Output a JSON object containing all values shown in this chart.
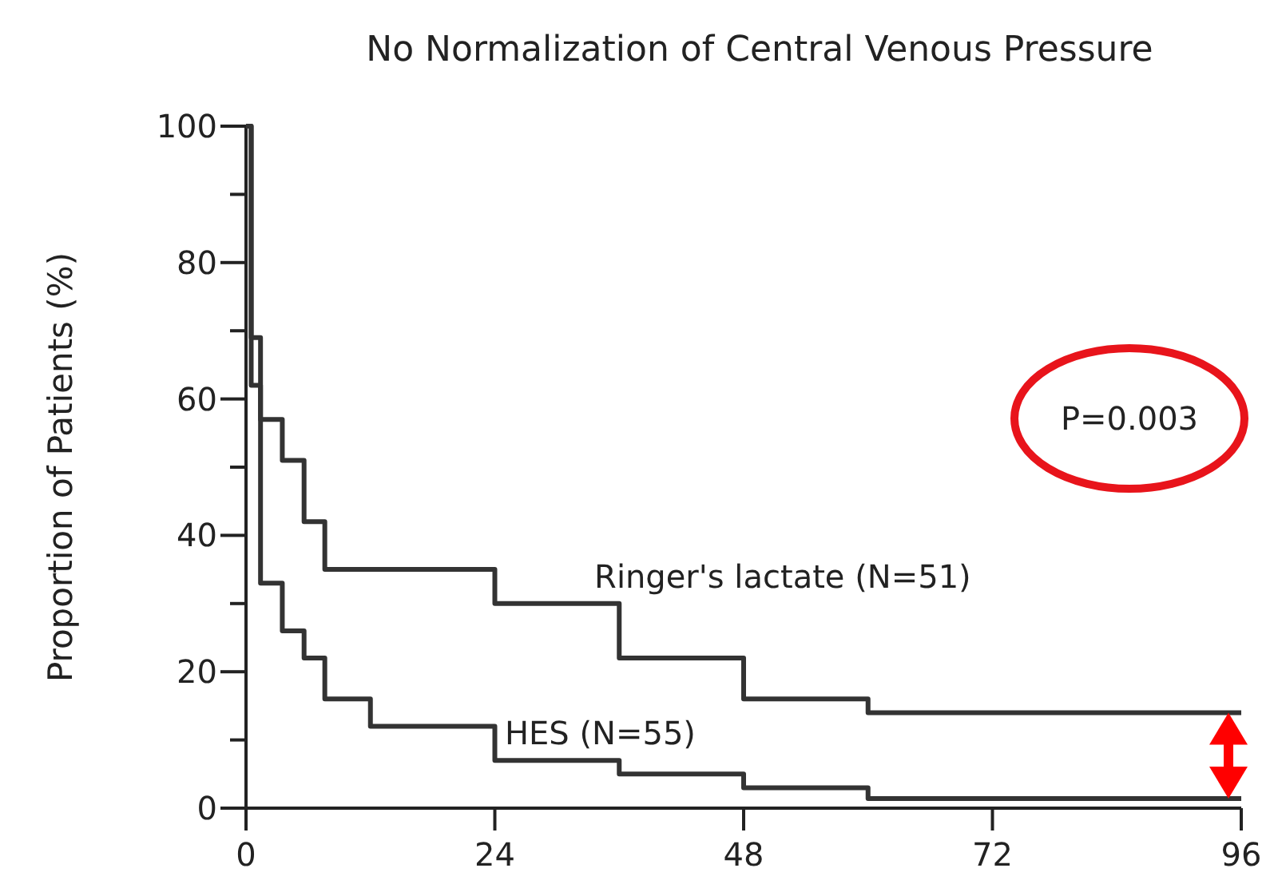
{
  "chart_data": {
    "type": "step",
    "title": "No Normalization of Central Venous Pressure",
    "ylabel": "Proportion of Patients (%)",
    "xlim": [
      0,
      96
    ],
    "xticks": [
      0,
      24,
      48,
      72,
      96
    ],
    "ylim": [
      0,
      100
    ],
    "yticks": [
      0,
      {
        "value": 10,
        "label": null
      },
      20,
      {
        "value": 30,
        "label": null
      },
      40,
      {
        "value": 50,
        "label": null
      },
      60,
      {
        "value": 70,
        "label": null
      },
      80,
      {
        "value": 90,
        "label": null
      },
      100
    ],
    "grid": false,
    "marker": "none",
    "line_style": "solid",
    "annotations": [
      "P=0.003"
    ],
    "series": [
      {
        "name": "Ringer's lactate (N=51)",
        "color": "#333333",
        "x": [
          0,
          0.5,
          1.4,
          3.5,
          5.6,
          7.6,
          24,
          36,
          48,
          60,
          96
        ],
        "values": [
          100,
          69,
          57,
          51,
          42,
          35,
          30,
          22,
          16,
          14,
          14
        ]
      },
      {
        "name": "HES (N=55)",
        "color": "#333333",
        "x": [
          0,
          0.5,
          1.4,
          3.5,
          5.6,
          7.6,
          12,
          24,
          36,
          48,
          60,
          96
        ],
        "values": [
          100,
          62,
          33,
          26,
          22,
          16,
          12,
          7,
          5,
          3,
          1.4,
          1.4
        ]
      }
    ]
  }
}
